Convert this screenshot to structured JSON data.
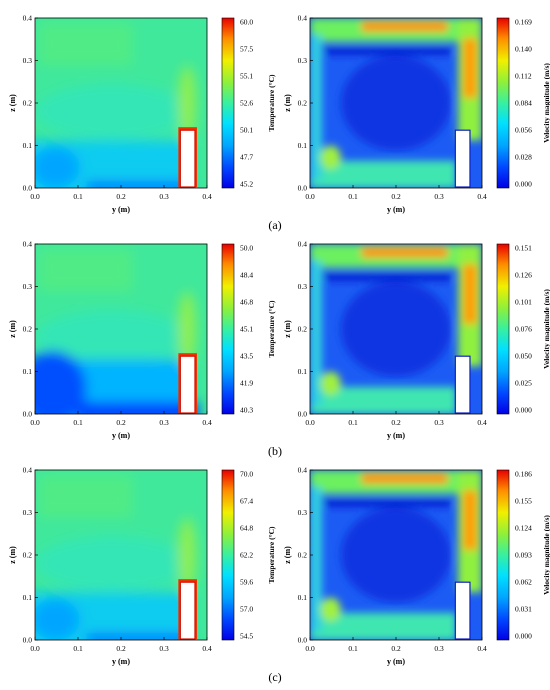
{
  "rows": [
    {
      "label": "(a)",
      "temperature": {
        "ticks": [
          "60.0",
          "57.5",
          "55.1",
          "52.6",
          "50.1",
          "47.7",
          "45.2"
        ],
        "title": "Temperature (°C)",
        "field": "warm"
      },
      "velocity": {
        "ticks": [
          "0.169",
          "0.140",
          "0.112",
          "0.084",
          "0.056",
          "0.028",
          "0.000"
        ],
        "title": "Velocity magnitude (m/s)"
      }
    },
    {
      "label": "(b)",
      "temperature": {
        "ticks": [
          "50.0",
          "48.4",
          "46.8",
          "45.1",
          "43.5",
          "41.9",
          "40.3"
        ],
        "title": "Temperature (°C)",
        "field": "cool"
      },
      "velocity": {
        "ticks": [
          "0.151",
          "0.126",
          "0.101",
          "0.076",
          "0.050",
          "0.025",
          "0.000"
        ],
        "title": "Velocity magnitude (m/s)"
      }
    },
    {
      "label": "(c)",
      "temperature": {
        "ticks": [
          "70.0",
          "67.4",
          "64.8",
          "62.2",
          "59.6",
          "57.0",
          "54.5"
        ],
        "title": "Temperature (°C)",
        "field": "warm"
      },
      "velocity": {
        "ticks": [
          "0.186",
          "0.155",
          "0.124",
          "0.093",
          "0.062",
          "0.031",
          "0.000"
        ],
        "title": "Velocity magnitude (m/s)"
      }
    }
  ],
  "axes": {
    "x_ticks": [
      "0.0",
      "0.1",
      "0.2",
      "0.3",
      "0.4"
    ],
    "y_ticks": [
      "0.0",
      "0.1",
      "0.2",
      "0.3",
      "0.4"
    ],
    "xlabel": "y (m)",
    "ylabel": "z (m)"
  }
}
